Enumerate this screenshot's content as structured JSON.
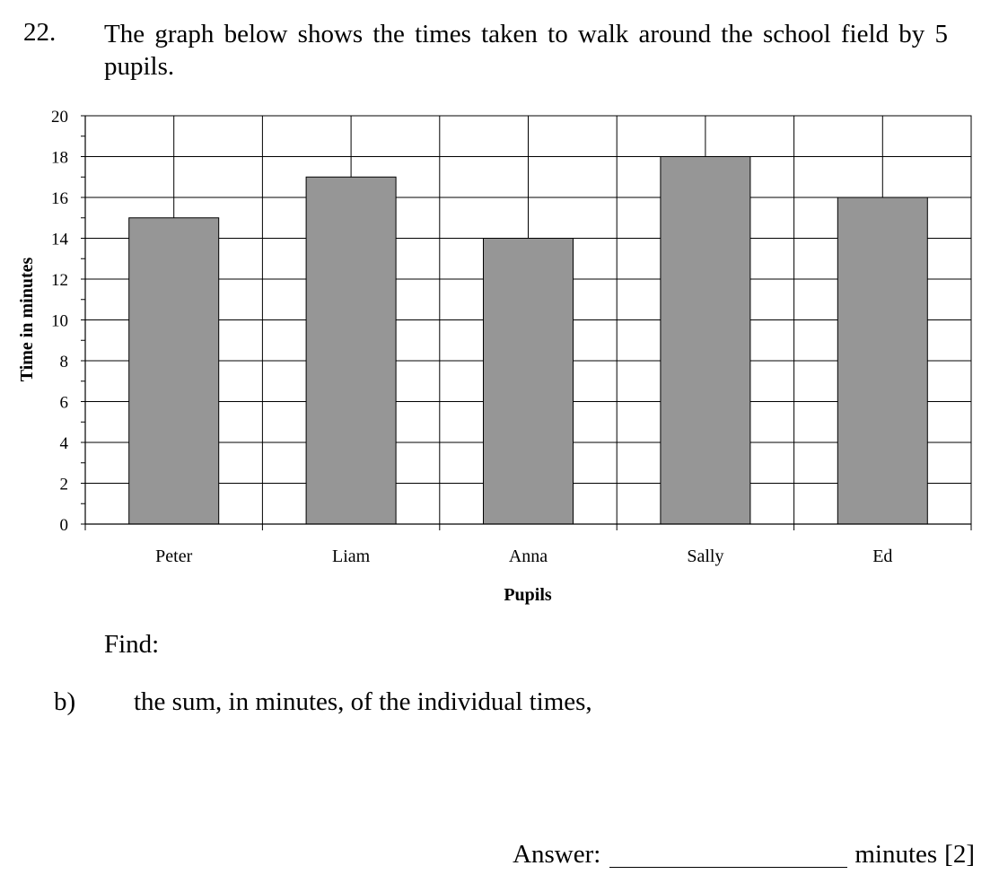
{
  "question": {
    "number": "22.",
    "text": "The graph below shows the times taken to walk around the school field by 5 pupils."
  },
  "chart_data": {
    "type": "bar",
    "categories": [
      "Peter",
      "Liam",
      "Anna",
      "Sally",
      "Ed"
    ],
    "values": [
      15,
      17,
      14,
      18,
      16
    ],
    "xlabel": "Pupils",
    "ylabel": "Time in minutes",
    "ylim": [
      0,
      20
    ],
    "yticks": [
      0,
      2,
      4,
      6,
      8,
      10,
      12,
      14,
      16,
      18,
      20
    ],
    "grid": true,
    "bar_color": "#969696"
  },
  "instruction": "Find:",
  "part": {
    "label": "b)",
    "text": "the sum, in minutes, of the individual times,"
  },
  "answer": {
    "label": "Answer:",
    "unit": "minutes",
    "marks": "[2]"
  }
}
